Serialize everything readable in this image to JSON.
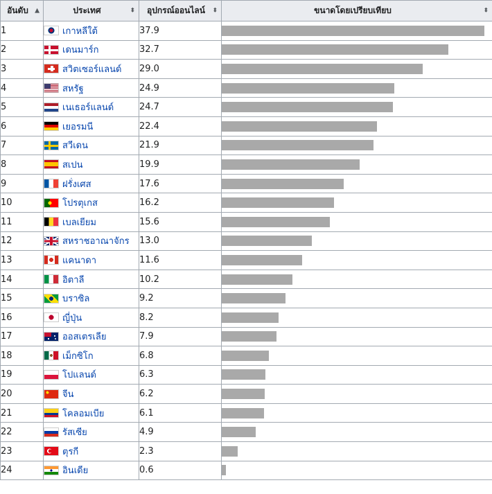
{
  "header": {
    "rank": "อันดับ",
    "country": "ประเทศ",
    "devices": "อุปกรณ์ออนไลน์",
    "size": "ขนาดโดยเปรียบเทียบ",
    "sort_asc_icon": "▲",
    "sort_both_icon": "⬍"
  },
  "max_value": 37.9,
  "rows": [
    {
      "rank": "1",
      "country": "เกาหลีใต้",
      "flag": "south-korea-flag",
      "value": "37.9"
    },
    {
      "rank": "2",
      "country": "เดนมาร์ก",
      "flag": "denmark-flag",
      "value": "32.7"
    },
    {
      "rank": "3",
      "country": "สวิตเซอร์แลนด์",
      "flag": "switzerland-flag",
      "value": "29.0"
    },
    {
      "rank": "4",
      "country": "สหรัฐ",
      "flag": "usa-flag",
      "value": "24.9"
    },
    {
      "rank": "5",
      "country": "เนเธอร์แลนด์",
      "flag": "netherlands-flag",
      "value": "24.7"
    },
    {
      "rank": "6",
      "country": "เยอรมนี",
      "flag": "germany-flag",
      "value": "22.4"
    },
    {
      "rank": "7",
      "country": "สวีเดน",
      "flag": "sweden-flag",
      "value": "21.9"
    },
    {
      "rank": "8",
      "country": "สเปน",
      "flag": "spain-flag",
      "value": "19.9"
    },
    {
      "rank": "9",
      "country": "ฝรั่งเศส",
      "flag": "france-flag",
      "value": "17.6"
    },
    {
      "rank": "10",
      "country": "โปรตุเกส",
      "flag": "portugal-flag",
      "value": "16.2"
    },
    {
      "rank": "11",
      "country": "เบลเยียม",
      "flag": "belgium-flag",
      "value": "15.6"
    },
    {
      "rank": "12",
      "country": "สหราชอาณาจักร",
      "flag": "uk-flag",
      "value": "13.0"
    },
    {
      "rank": "13",
      "country": "แคนาดา",
      "flag": "canada-flag",
      "value": "11.6"
    },
    {
      "rank": "14",
      "country": "อิตาลี",
      "flag": "italy-flag",
      "value": "10.2"
    },
    {
      "rank": "15",
      "country": "บราซิล",
      "flag": "brazil-flag",
      "value": "9.2"
    },
    {
      "rank": "16",
      "country": "ญี่ปุ่น",
      "flag": "japan-flag",
      "value": "8.2"
    },
    {
      "rank": "17",
      "country": "ออสเตรเลีย",
      "flag": "australia-flag",
      "value": "7.9"
    },
    {
      "rank": "18",
      "country": "เม็กซิโก",
      "flag": "mexico-flag",
      "value": "6.8"
    },
    {
      "rank": "19",
      "country": "โปแลนด์",
      "flag": "poland-flag",
      "value": "6.3"
    },
    {
      "rank": "20",
      "country": "จีน",
      "flag": "china-flag",
      "value": "6.2"
    },
    {
      "rank": "21",
      "country": "โคลอมเบีย",
      "flag": "colombia-flag",
      "value": "6.1"
    },
    {
      "rank": "22",
      "country": "รัสเซีย",
      "flag": "russia-flag",
      "value": "4.9"
    },
    {
      "rank": "23",
      "country": "ตุรกี",
      "flag": "turkey-flag",
      "value": "2.3"
    },
    {
      "rank": "24",
      "country": "อินเดีย",
      "flag": "india-flag",
      "value": "0.6"
    }
  ]
}
